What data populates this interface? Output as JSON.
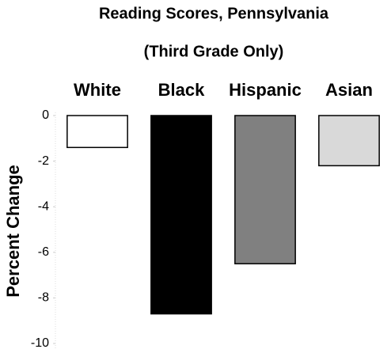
{
  "chart_data": {
    "type": "bar",
    "title": [
      "Reading Scores, Pennsylvania",
      "(Third Grade Only)"
    ],
    "y_label": "Percent Change",
    "categories": [
      "White",
      "Black",
      "Hispanic",
      "Asian"
    ],
    "values": [
      -1.4,
      -8.7,
      -6.5,
      -2.2
    ],
    "colors": [
      "#ffffff",
      "#000000",
      "#808080",
      "#d9d9d9"
    ],
    "ylim": [
      -10,
      0
    ],
    "yticks": [
      0,
      -2,
      -4,
      -6,
      -8,
      -10
    ]
  }
}
